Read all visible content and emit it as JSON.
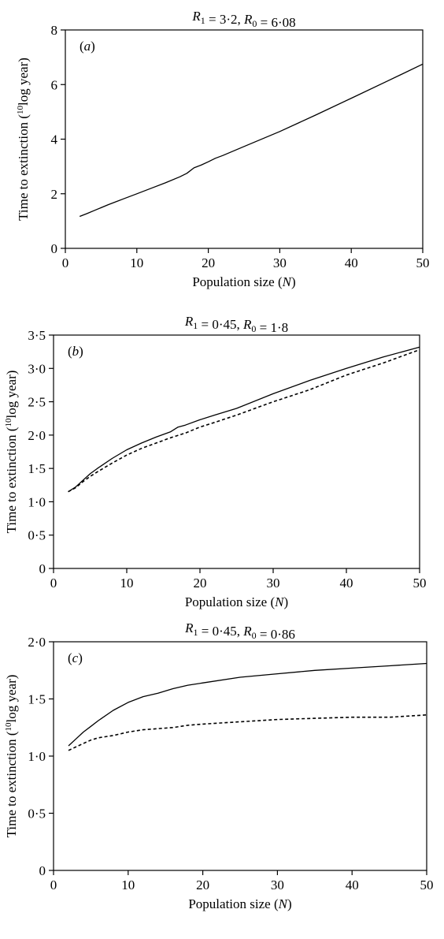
{
  "chart_data": [
    {
      "type": "line",
      "panel_label": "(a)",
      "title": "R1 = 3·2, R0 = 6·08",
      "xlabel": "Population size (N)",
      "ylabel": "Time to extinction (10log year)",
      "xlim": [
        0,
        50
      ],
      "ylim": [
        0,
        8
      ],
      "xticks": [
        0,
        10,
        20,
        30,
        40,
        50
      ],
      "yticks": [
        0,
        2,
        4,
        6,
        8
      ],
      "ytick_labels": [
        "0",
        "2",
        "4",
        "6",
        "8"
      ],
      "grid": false,
      "series": [
        {
          "style": "solid",
          "x": [
            2,
            3,
            4,
            6,
            8,
            10,
            12,
            14,
            16,
            17,
            18,
            19,
            20,
            21,
            22,
            25,
            30,
            35,
            40,
            45,
            50
          ],
          "y": [
            1.17,
            1.27,
            1.38,
            1.6,
            1.8,
            2.0,
            2.2,
            2.4,
            2.62,
            2.75,
            2.95,
            3.05,
            3.17,
            3.3,
            3.4,
            3.73,
            4.28,
            4.88,
            5.5,
            6.12,
            6.75
          ]
        }
      ]
    },
    {
      "type": "line",
      "panel_label": "(b)",
      "title": "R1 = 0·45, R0 = 1·8",
      "xlabel": "Population size (N)",
      "ylabel": "Time to extinction (10log year)",
      "xlim": [
        0,
        50
      ],
      "ylim": [
        0,
        3.5
      ],
      "xticks": [
        0,
        10,
        20,
        30,
        40,
        50
      ],
      "yticks": [
        0,
        0.5,
        1.0,
        1.5,
        2.0,
        2.5,
        3.0,
        3.5
      ],
      "ytick_labels": [
        "0",
        "0·5",
        "1·0",
        "1·5",
        "2·0",
        "2·5",
        "3·0",
        "3·5"
      ],
      "grid": false,
      "series": [
        {
          "style": "solid",
          "x": [
            2,
            3,
            4,
            5,
            6,
            8,
            10,
            12,
            14,
            16,
            17,
            18,
            20,
            22,
            25,
            30,
            35,
            40,
            45,
            50
          ],
          "y": [
            1.15,
            1.22,
            1.32,
            1.42,
            1.5,
            1.65,
            1.78,
            1.88,
            1.97,
            2.05,
            2.12,
            2.15,
            2.23,
            2.3,
            2.4,
            2.62,
            2.82,
            3.0,
            3.17,
            3.32
          ]
        },
        {
          "style": "dashed",
          "x": [
            2,
            3,
            4,
            5,
            6,
            8,
            10,
            12,
            14,
            16,
            18,
            20,
            22,
            25,
            30,
            35,
            40,
            45,
            50
          ],
          "y": [
            1.15,
            1.21,
            1.3,
            1.38,
            1.45,
            1.58,
            1.7,
            1.8,
            1.88,
            1.96,
            2.03,
            2.12,
            2.19,
            2.3,
            2.5,
            2.68,
            2.9,
            3.08,
            3.28
          ]
        }
      ]
    },
    {
      "type": "line",
      "panel_label": "(c)",
      "title": "R1 = 0·45, R0 = 0·86",
      "xlabel": "Population size (N)",
      "ylabel": "Time to extinction (10log year)",
      "xlim": [
        0,
        50
      ],
      "ylim": [
        0,
        2.0
      ],
      "xticks": [
        0,
        10,
        20,
        30,
        40,
        50
      ],
      "yticks": [
        0,
        0.5,
        1.0,
        1.5,
        2.0
      ],
      "ytick_labels": [
        "0",
        "0·5",
        "1·0",
        "1·5",
        "2·0"
      ],
      "grid": false,
      "series": [
        {
          "style": "solid",
          "x": [
            2,
            3,
            4,
            5,
            6,
            8,
            10,
            12,
            14,
            16,
            18,
            20,
            25,
            30,
            35,
            40,
            45,
            50
          ],
          "y": [
            1.09,
            1.15,
            1.21,
            1.26,
            1.31,
            1.4,
            1.47,
            1.52,
            1.55,
            1.59,
            1.62,
            1.64,
            1.69,
            1.72,
            1.75,
            1.77,
            1.79,
            1.81
          ]
        },
        {
          "style": "dashed",
          "x": [
            2,
            3,
            4,
            5,
            6,
            8,
            10,
            12,
            14,
            16,
            18,
            20,
            25,
            30,
            35,
            40,
            45,
            50
          ],
          "y": [
            1.05,
            1.08,
            1.11,
            1.14,
            1.16,
            1.18,
            1.21,
            1.23,
            1.24,
            1.25,
            1.27,
            1.28,
            1.3,
            1.32,
            1.33,
            1.34,
            1.34,
            1.36
          ]
        }
      ]
    }
  ]
}
